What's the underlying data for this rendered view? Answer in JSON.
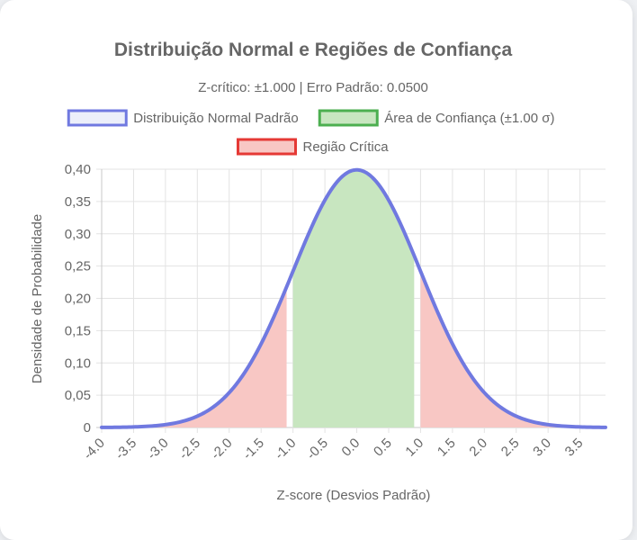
{
  "chart_data": {
    "type": "area",
    "title": "Distribuição Normal e Regiões de Confiança",
    "subtitle": "Z-crítico: ±1.000 | Erro Padrão: 0.0500",
    "xlabel": "Z-score (Desvios Padrão)",
    "ylabel": "Densidade de Probabilidade",
    "xlim": [
      -4.0,
      3.9
    ],
    "ylim": [
      0,
      0.4
    ],
    "x_ticks": [
      "-4.0",
      "-3.5",
      "-3.0",
      "-2.5",
      "-2.0",
      "-1.5",
      "-1.0",
      "-0.5",
      "0.0",
      "0.5",
      "1.0",
      "1.5",
      "2.0",
      "2.5",
      "3.0",
      "3.5"
    ],
    "y_ticks": [
      "0",
      "0,05",
      "0,10",
      "0,15",
      "0,20",
      "0,25",
      "0,30",
      "0,35",
      "0,40"
    ],
    "grid": true,
    "legend_position": "top",
    "legend": [
      {
        "label": "Distribuição Normal Padrão",
        "fill": "#eceffa",
        "stroke": "#7079e0"
      },
      {
        "label": "Área de Confiança (±1.00 σ)",
        "fill": "#c8e6c0",
        "stroke": "#4caf50"
      },
      {
        "label": "Região Crítica",
        "fill": "#f8c7c4",
        "stroke": "#e53935"
      }
    ],
    "series": [
      {
        "name": "Distribuição Normal Padrão",
        "function": "standard_normal_pdf",
        "x_range": [
          -4.0,
          3.9
        ],
        "color": "#7079e0"
      },
      {
        "name": "Área de Confiança (±1.00 σ)",
        "function": "standard_normal_pdf",
        "x_range": [
          -1.0,
          0.9
        ],
        "color": "#c8e6c0"
      },
      {
        "name": "Região Crítica",
        "function": "standard_normal_pdf",
        "x_ranges": [
          [
            -4.0,
            -1.1
          ],
          [
            1.0,
            3.9
          ]
        ],
        "color": "#f8c7c4"
      }
    ]
  }
}
